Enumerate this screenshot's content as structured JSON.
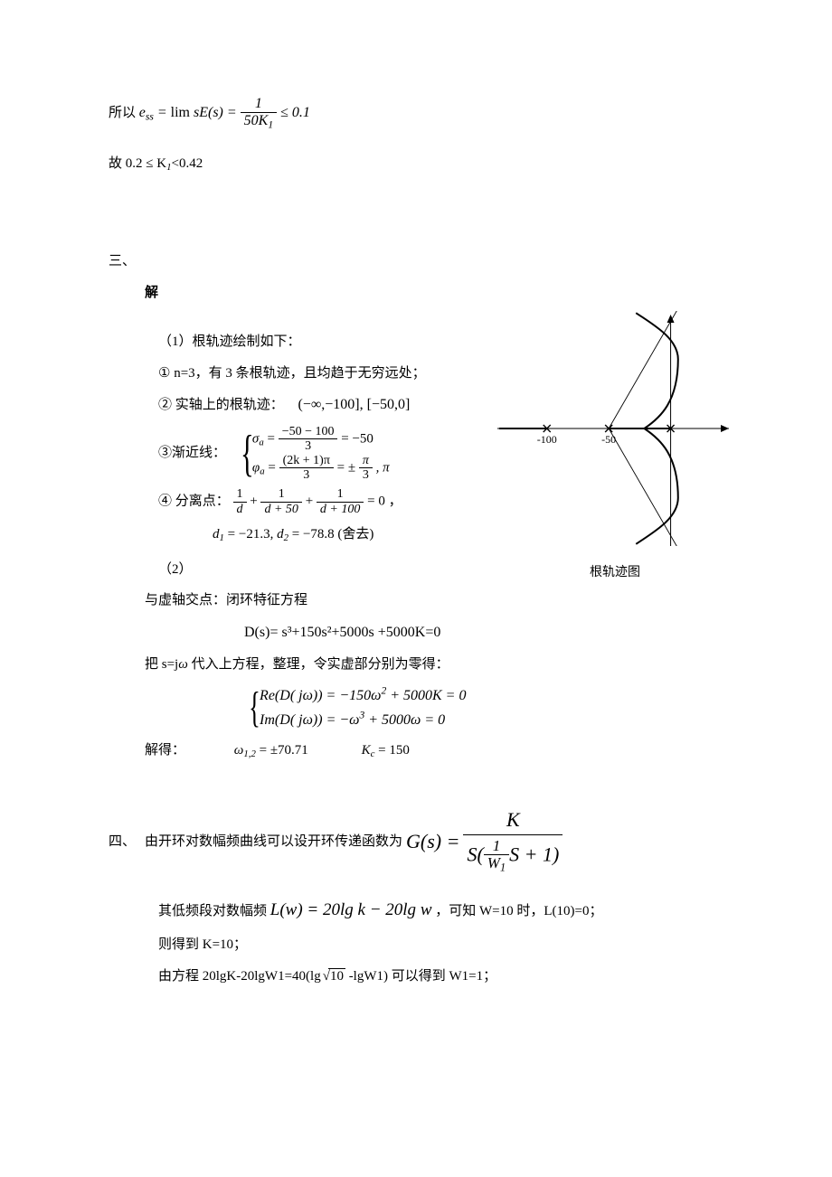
{
  "p1": {
    "prefix": "所以",
    "ess": "e",
    "ess_sub": "ss",
    "lim": "lim",
    "sE": "sE(s)",
    "eq1": " = ",
    "frac_num": "1",
    "frac_den_a": "50",
    "frac_den_k": "K",
    "frac_den_sub": "1",
    "le": " ≤ 0.1"
  },
  "p2": {
    "prefix": "故 0.2 ≤ K",
    "sub": "1",
    "suffix": "<0.42"
  },
  "sec3": {
    "heading": "三、",
    "jie": "解",
    "item1_pre": "（1）根轨迹绘制如下：",
    "li1": "①  n=3，有 3 条根轨迹，且均趋于无穷远处；",
    "li2_label": "②  实轴上的根轨迹：",
    "li2_math": "(−∞,−100], [−50,0]",
    "li3_label": "③渐近线：",
    "asym_sigma_a": "σ",
    "asym_sigma_sub": "a",
    "asym_sigma_eq": " = ",
    "asym_sigma_num": "−50 − 100",
    "asym_sigma_den": "3",
    "asym_sigma_res": " = −50",
    "asym_phi_a": "φ",
    "asym_phi_sub": "a",
    "asym_phi_eq": " = ",
    "asym_phi_num": "(2k + 1)π",
    "asym_phi_den": "3",
    "asym_phi_res_a": " = ±",
    "asym_phi_res_num": "π",
    "asym_phi_res_den": "3",
    "asym_phi_tail": ", π",
    "li4_label": "④  分离点：",
    "sep_1d": "1",
    "sep_d": "d",
    "sep_plus": " + ",
    "sep_d50": "d + 50",
    "sep_d100": "d + 100",
    "sep_eq0": " = 0 ，",
    "sep_d1": "d",
    "sep_d1sub": "1",
    "sep_d1val": " = −21.3, ",
    "sep_d2": "d",
    "sep_d2sub": "2",
    "sep_d2val": " = −78.8 (舍去)",
    "item2": "（2）",
    "close_loop": "与虚轴交点：闭环特征方程",
    "Ds": "D(s)= s³+150s²+5000s +5000K=0",
    "sub_in": "把 s=j",
    "omega_sym": "ω",
    "sub_in_tail": " 代入上方程，整理，令实虚部分别为零得：",
    "ReD": "Re(D( jω)) = −150ω² + 5000K = 0",
    "ImD": "Im(D( jω)) = −ω³ + 5000ω = 0",
    "solve_label": "解得：",
    "omega12": "ω",
    "omega12_sub": "1,2",
    "omega12_val": " = ±70.71",
    "Kc": "K",
    "Kc_sub": "c",
    "Kc_val": " = 150",
    "caption": "根轨迹图"
  },
  "sec4": {
    "heading": "四、",
    "t1_pre": "由开环对数幅频曲线可以设开环传递函数为 ",
    "Gs": "G(s) = ",
    "K": "K",
    "den_S": "S",
    "den_open": "(",
    "den_inner_num": "1",
    "den_inner_W": "W",
    "den_inner_Wsub": "1",
    "den_tail": "S + 1)",
    "t2_pre": "其低频段对数幅频 ",
    "Lw": "L(w) = 20lg k − 20lg w",
    "t2_tail": "，可知 W=10 时，L(10)=0；",
    "t3": "则得到 K=10；",
    "t4_pre": "由方程 20lgK-20lgW1=40(lg",
    "t4_sqrt": "10",
    "t4_tail": " -lgW1) 可以得到 W1=1；"
  },
  "diagram": {
    "background": "#ffffff",
    "axis_color": "#000000",
    "curve_color": "#000000",
    "tick_labels": [
      "-100",
      "-50"
    ],
    "x_range": [
      -140,
      50
    ],
    "y_range": [
      -120,
      120
    ],
    "cross_x": [
      -100,
      -50,
      0
    ],
    "breakaway_x": -21.3,
    "asymptote_center": -50,
    "asymptote_angles_deg": [
      60,
      -60
    ],
    "line_width_axis": 1,
    "line_width_curve": 2,
    "font_size_label": 12
  }
}
